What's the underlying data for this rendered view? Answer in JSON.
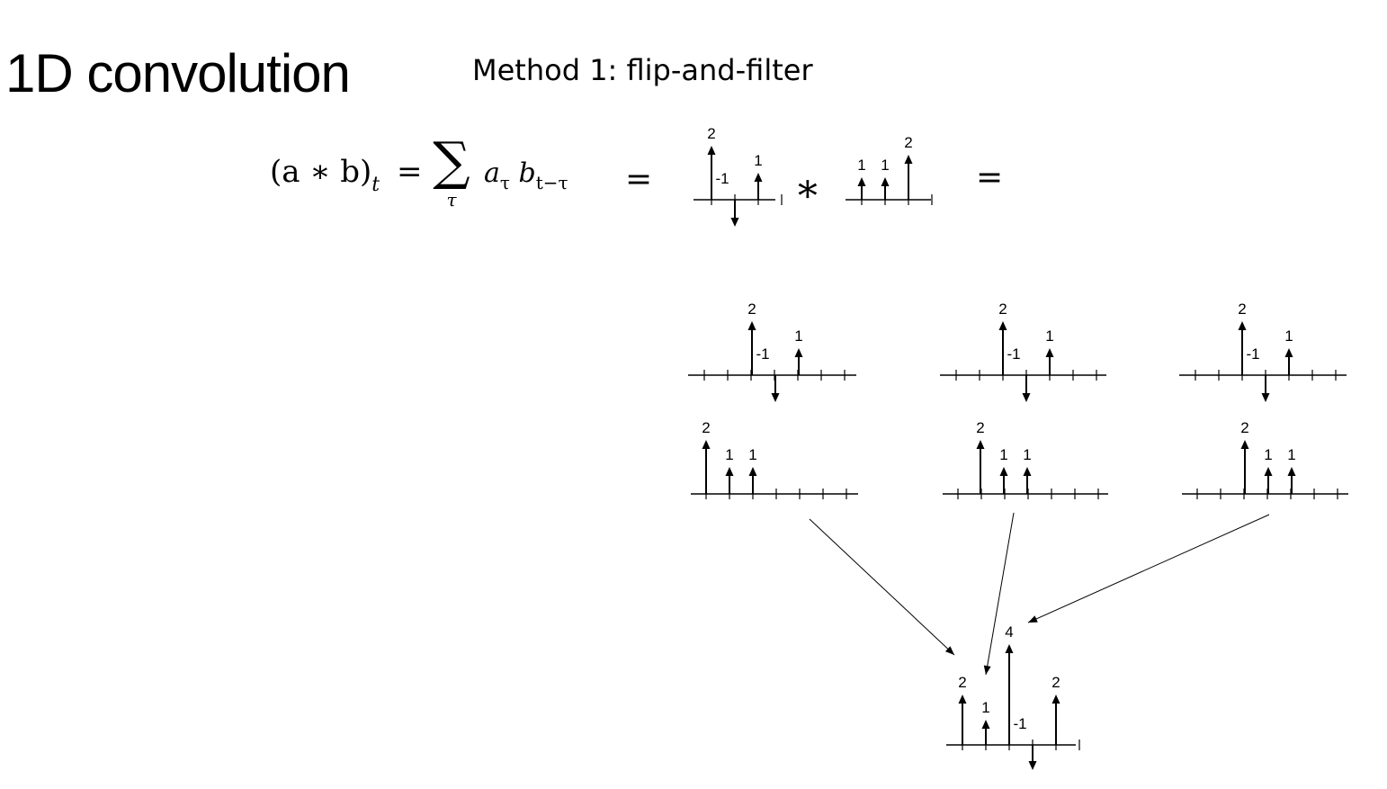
{
  "slide": {
    "title": "1D convolution",
    "method_title": "Method 1:  flip-and-filter"
  },
  "formula": {
    "lhs": "(a ∗ b)",
    "lhs_sub": "t",
    "eq": "=",
    "sum_symbol": "∑",
    "sum_index": "τ",
    "term_a": "a",
    "term_a_sub": "τ",
    "term_b": "b",
    "term_b_sub": "t−τ",
    "eq2": "=",
    "conv_op": "∗",
    "eq3": "="
  },
  "signals": {
    "a": [
      {
        "label": "2",
        "value": 2
      },
      {
        "label": "-1",
        "value": -1
      },
      {
        "label": "1",
        "value": 1
      }
    ],
    "b": [
      {
        "label": "1",
        "value": 1
      },
      {
        "label": "1",
        "value": 1
      },
      {
        "label": "2",
        "value": 2
      }
    ],
    "b_flipped": [
      {
        "label": "2",
        "value": 2
      },
      {
        "label": "1",
        "value": 1
      },
      {
        "label": "1",
        "value": 1
      }
    ],
    "result": [
      {
        "label": "2",
        "value": 2
      },
      {
        "label": "1",
        "value": 1
      },
      {
        "label": "4",
        "value": 4
      },
      {
        "label": "-1",
        "value": -1
      },
      {
        "label": "2",
        "value": 2
      }
    ]
  }
}
